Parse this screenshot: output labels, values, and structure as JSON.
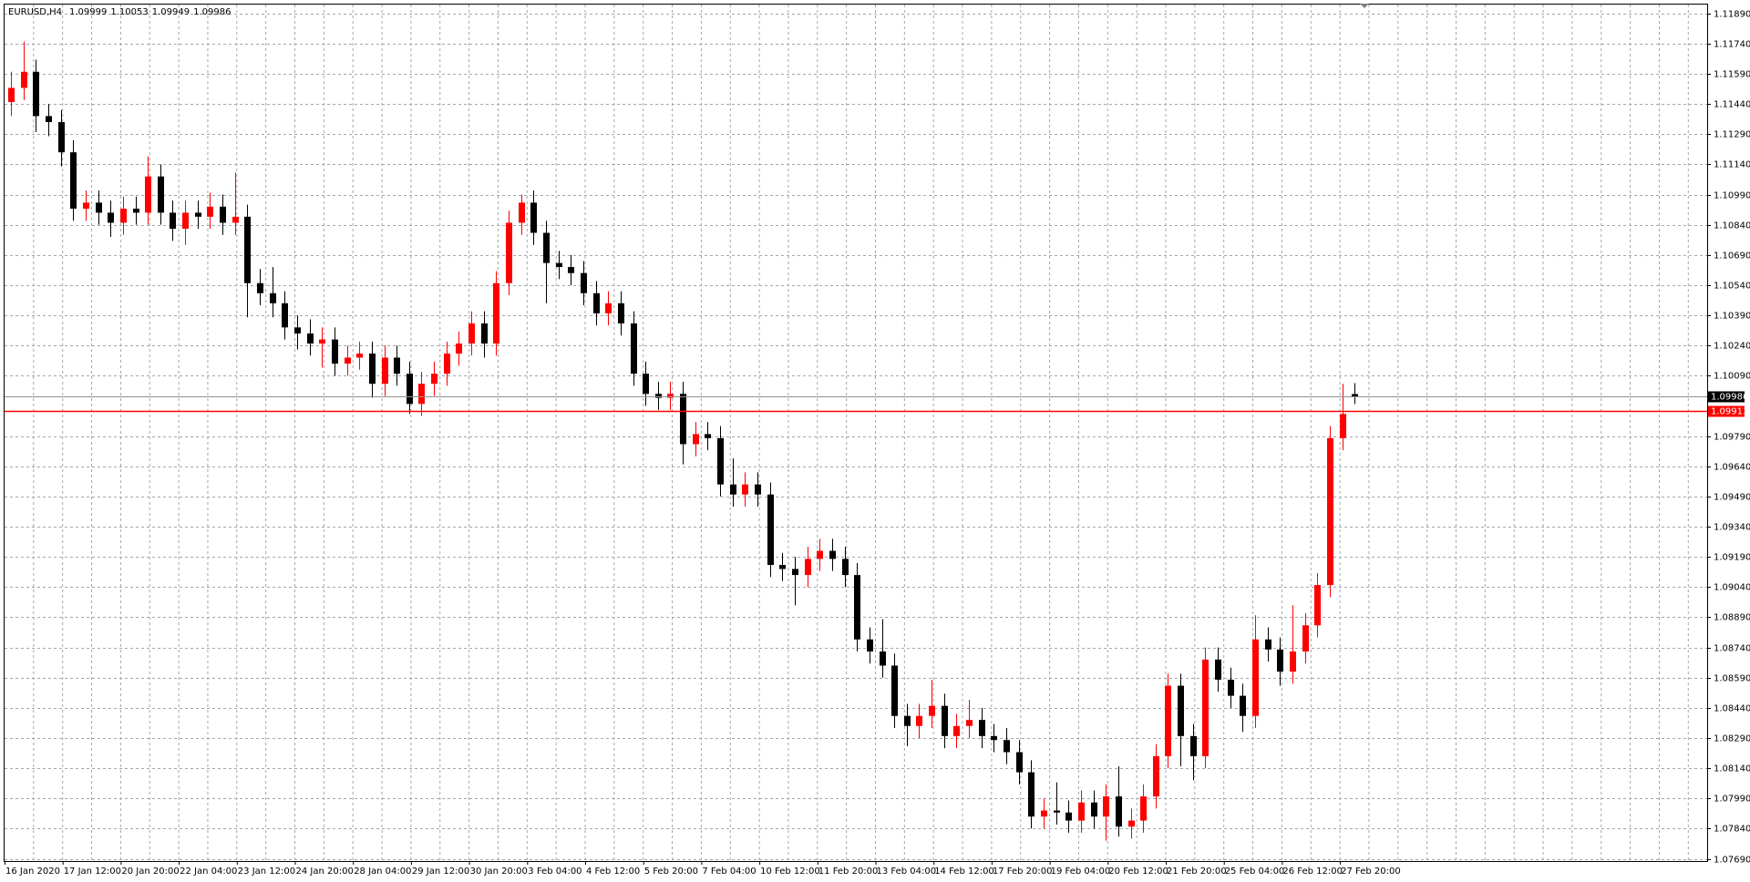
{
  "chart_data": {
    "type": "candlestick",
    "title": "EURUSD,H4",
    "title_values": [
      1.09999,
      1.10053,
      1.09949,
      1.09986
    ],
    "up_color": "#ff0000",
    "down_color": "#000000",
    "grid": true,
    "ylim": [
      1.07679,
      1.11934
    ],
    "yticks": [
      {
        "value": 1.1189,
        "label": "1.11890"
      },
      {
        "value": 1.1174,
        "label": "1.11740"
      },
      {
        "value": 1.1159,
        "label": "1.11590"
      },
      {
        "value": 1.1144,
        "label": "1.11440"
      },
      {
        "value": 1.1129,
        "label": "1.11290"
      },
      {
        "value": 1.1114,
        "label": "1.11140"
      },
      {
        "value": 1.1099,
        "label": "1.10990"
      },
      {
        "value": 1.1084,
        "label": "1.10840"
      },
      {
        "value": 1.1069,
        "label": "1.10690"
      },
      {
        "value": 1.1054,
        "label": "1.10540"
      },
      {
        "value": 1.1039,
        "label": "1.10390"
      },
      {
        "value": 1.1024,
        "label": "1.10240"
      },
      {
        "value": 1.1009,
        "label": "1.10090"
      },
      {
        "value": 1.0979,
        "label": "1.09790"
      },
      {
        "value": 1.0964,
        "label": "1.09640"
      },
      {
        "value": 1.0949,
        "label": "1.09490"
      },
      {
        "value": 1.0934,
        "label": "1.09340"
      },
      {
        "value": 1.0919,
        "label": "1.09190"
      },
      {
        "value": 1.0904,
        "label": "1.09040"
      },
      {
        "value": 1.0889,
        "label": "1.08890"
      },
      {
        "value": 1.0874,
        "label": "1.08740"
      },
      {
        "value": 1.0859,
        "label": "1.08590"
      },
      {
        "value": 1.0844,
        "label": "1.08440"
      },
      {
        "value": 1.0829,
        "label": "1.08290"
      },
      {
        "value": 1.0814,
        "label": "1.08140"
      },
      {
        "value": 1.0799,
        "label": "1.07990"
      },
      {
        "value": 1.0784,
        "label": "1.07840"
      },
      {
        "value": 1.0769,
        "label": "1.07690"
      }
    ],
    "bid": 1.09986,
    "hline": {
      "value": 1.09913,
      "color": "#ff0000"
    },
    "x_labels": [
      "16 Jan 2020",
      "17 Jan 12:00",
      "20 Jan 20:00",
      "22 Jan 04:00",
      "23 Jan 12:00",
      "24 Jan 20:00",
      "28 Jan 04:00",
      "29 Jan 12:00",
      "30 Jan 20:00",
      "3 Feb 04:00",
      "4 Feb 12:00",
      "5 Feb 20:00",
      "7 Feb 04:00",
      "10 Feb 12:00",
      "11 Feb 20:00",
      "13 Feb 04:00",
      "14 Feb 12:00",
      "17 Feb 20:00",
      "19 Feb 04:00",
      "20 Feb 12:00",
      "21 Feb 20:00",
      "25 Feb 04:00",
      "26 Feb 12:00",
      "27 Feb 20:00"
    ],
    "open": [
      1.1145,
      1.1152,
      1.116,
      1.1138,
      1.1135,
      1.112,
      1.1092,
      1.1095,
      1.109,
      1.1085,
      1.1092,
      1.109,
      1.1108,
      1.109,
      1.1082,
      1.109,
      1.1088,
      1.1093,
      1.1085,
      1.1088,
      1.1055,
      1.105,
      1.1045,
      1.1033,
      1.103,
      1.1025,
      1.1027,
      1.1015,
      1.1018,
      1.102,
      1.1005,
      1.1018,
      1.101,
      1.0995,
      1.1005,
      1.101,
      1.102,
      1.1025,
      1.1035,
      1.1025,
      1.1055,
      1.1085,
      1.1095,
      1.108,
      1.1065,
      1.1063,
      1.106,
      1.105,
      1.104,
      1.1045,
      1.1035,
      1.101,
      1.1,
      1.0998,
      1.1,
      1.0975,
      1.098,
      1.0978,
      1.0955,
      1.095,
      1.0955,
      1.095,
      1.0915,
      1.0913,
      1.091,
      1.0918,
      1.0922,
      1.0918,
      1.091,
      1.0878,
      1.0872,
      1.0865,
      1.084,
      1.0835,
      1.084,
      1.0845,
      1.083,
      1.0835,
      1.0838,
      1.083,
      1.0828,
      1.0822,
      1.0812,
      1.079,
      1.0793,
      1.0792,
      1.0788,
      1.0797,
      1.079,
      1.08,
      1.0785,
      1.0788,
      1.08,
      1.082,
      1.0855,
      1.083,
      1.082,
      1.0868,
      1.0858,
      1.085,
      1.084,
      1.0878,
      1.0873,
      1.0862,
      1.0872,
      1.0885,
      1.0905,
      1.0978,
      1.09999
    ],
    "high": [
      1.116,
      1.1175,
      1.1166,
      1.1144,
      1.1141,
      1.1126,
      1.1101,
      1.1101,
      1.1096,
      1.1098,
      1.1098,
      1.1118,
      1.1114,
      1.1096,
      1.1096,
      1.1096,
      1.11,
      1.1099,
      1.111,
      1.1094,
      1.1062,
      1.1063,
      1.1051,
      1.1039,
      1.1037,
      1.1033,
      1.1033,
      1.1024,
      1.1026,
      1.1026,
      1.1024,
      1.1024,
      1.1016,
      1.1011,
      1.1016,
      1.1026,
      1.1031,
      1.1041,
      1.1041,
      1.1061,
      1.1091,
      1.1099,
      1.1101,
      1.1086,
      1.1071,
      1.1069,
      1.1066,
      1.1056,
      1.1051,
      1.1051,
      1.1041,
      1.1016,
      1.1006,
      1.1006,
      1.1006,
      1.0986,
      1.0986,
      1.0984,
      1.0968,
      1.0961,
      1.0961,
      1.0956,
      1.0921,
      1.0919,
      1.0924,
      1.0928,
      1.0928,
      1.0924,
      1.0916,
      1.0884,
      1.0888,
      1.0871,
      1.0846,
      1.0846,
      1.0858,
      1.0851,
      1.0841,
      1.0848,
      1.0844,
      1.0836,
      1.0834,
      1.0828,
      1.0818,
      1.0799,
      1.0807,
      1.0798,
      1.0803,
      1.0803,
      1.0806,
      1.0815,
      1.0794,
      1.0806,
      1.0826,
      1.0861,
      1.0861,
      1.0836,
      1.0874,
      1.0874,
      1.0864,
      1.0856,
      1.089,
      1.0884,
      1.0879,
      1.0895,
      1.0891,
      1.0911,
      1.0984,
      1.1005,
      1.10053
    ],
    "low": [
      1.1138,
      1.1146,
      1.113,
      1.1128,
      1.1113,
      1.1086,
      1.1086,
      1.1084,
      1.1078,
      1.1079,
      1.1084,
      1.1084,
      1.1084,
      1.1076,
      1.1074,
      1.1082,
      1.1082,
      1.1079,
      1.1079,
      1.1038,
      1.1044,
      1.1038,
      1.1027,
      1.1022,
      1.1019,
      1.1013,
      1.1009,
      1.1009,
      1.1012,
      1.0998,
      1.0999,
      1.1004,
      1.099,
      1.0989,
      1.0999,
      1.1004,
      1.1014,
      1.1019,
      1.1018,
      1.1019,
      1.1049,
      1.1079,
      1.1074,
      1.1045,
      1.1057,
      1.1054,
      1.1044,
      1.1034,
      1.1034,
      1.1029,
      1.1004,
      1.0994,
      1.0992,
      1.0992,
      1.0965,
      1.0969,
      1.0972,
      1.0949,
      1.0944,
      1.0944,
      1.0944,
      1.0909,
      1.0907,
      1.0895,
      1.0904,
      1.0912,
      1.0912,
      1.0904,
      1.0872,
      1.0866,
      1.0859,
      1.0834,
      1.0825,
      1.0829,
      1.0834,
      1.0824,
      1.0824,
      1.0829,
      1.0824,
      1.0822,
      1.0816,
      1.0806,
      1.0784,
      1.0784,
      1.0786,
      1.0782,
      1.0782,
      1.0784,
      1.0778,
      1.078,
      1.0779,
      1.0782,
      1.0794,
      1.0814,
      1.0815,
      1.0808,
      1.0814,
      1.0852,
      1.0844,
      1.0832,
      1.0834,
      1.0867,
      1.0855,
      1.0856,
      1.0866,
      1.0879,
      1.0899,
      1.0972,
      1.09949
    ],
    "close": [
      1.1152,
      1.116,
      1.1138,
      1.1135,
      1.112,
      1.1092,
      1.1095,
      1.109,
      1.1085,
      1.1092,
      1.109,
      1.1108,
      1.109,
      1.1082,
      1.109,
      1.1088,
      1.1093,
      1.1085,
      1.1088,
      1.1055,
      1.105,
      1.1045,
      1.1033,
      1.103,
      1.1025,
      1.1027,
      1.1015,
      1.1018,
      1.102,
      1.1005,
      1.1018,
      1.101,
      1.0995,
      1.1005,
      1.101,
      1.102,
      1.1025,
      1.1035,
      1.1025,
      1.1055,
      1.1085,
      1.1095,
      1.108,
      1.1065,
      1.1063,
      1.106,
      1.105,
      1.104,
      1.1045,
      1.1035,
      1.101,
      1.1,
      1.0998,
      1.1,
      1.0975,
      1.098,
      1.0978,
      1.0955,
      1.095,
      1.0955,
      1.095,
      1.0915,
      1.0913,
      1.091,
      1.0918,
      1.0922,
      1.0918,
      1.091,
      1.0878,
      1.0872,
      1.0865,
      1.084,
      1.0835,
      1.084,
      1.0845,
      1.083,
      1.0835,
      1.0838,
      1.083,
      1.0828,
      1.0822,
      1.0812,
      1.079,
      1.0793,
      1.0792,
      1.0788,
      1.0797,
      1.079,
      1.08,
      1.0785,
      1.0788,
      1.08,
      1.082,
      1.0855,
      1.083,
      1.082,
      1.0868,
      1.0858,
      1.085,
      1.084,
      1.0878,
      1.0873,
      1.0862,
      1.0872,
      1.0885,
      1.0905,
      1.0978,
      1.099,
      1.09986
    ]
  }
}
